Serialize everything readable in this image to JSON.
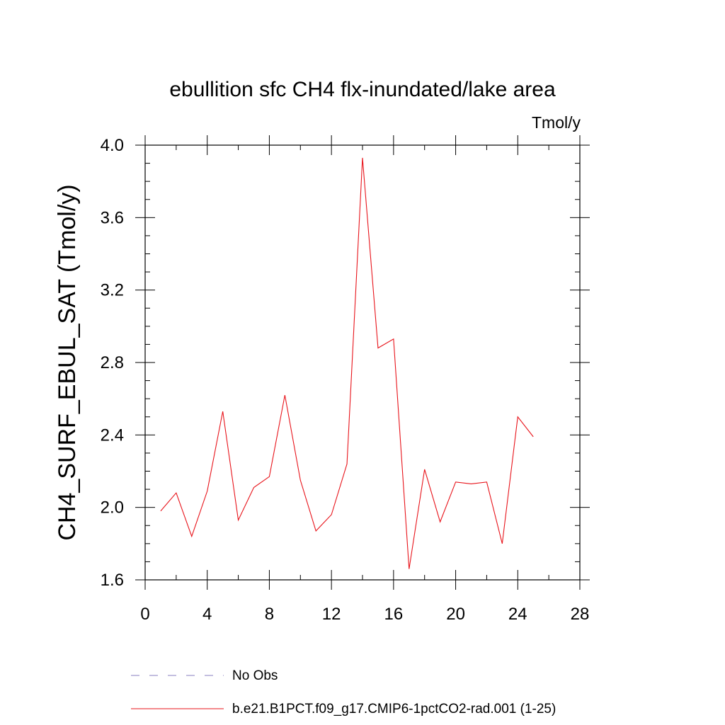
{
  "chart_data": {
    "type": "line",
    "title": "ebullition sfc CH4 flx-inundated/lake area",
    "units": "Tmol/y",
    "ylabel": "CH4_SURF_EBUL_SAT  (Tmol/y)",
    "xlabel": "",
    "xlim": [
      0,
      28
    ],
    "ylim": [
      1.6,
      4.0
    ],
    "xticks": [
      0,
      4,
      8,
      12,
      16,
      20,
      24,
      28
    ],
    "yticks": [
      1.6,
      2.0,
      2.4,
      2.8,
      3.2,
      3.6,
      4.0
    ],
    "xtick_labels": [
      "0",
      "4",
      "8",
      "12",
      "16",
      "20",
      "24",
      "28"
    ],
    "ytick_labels": [
      "1.6",
      "2.0",
      "2.4",
      "2.8",
      "3.2",
      "3.6",
      "4.0"
    ],
    "legend_placement": "bottom",
    "series": [
      {
        "name": "No Obs",
        "color": "#8a7fc0",
        "style": "dashed",
        "x": [],
        "values": []
      },
      {
        "name": "b.e21.B1PCT.f09_g17.CMIP6-1pctCO2-rad.001 (1-25)",
        "color": "#e8141b",
        "style": "solid",
        "x": [
          1,
          2,
          3,
          4,
          5,
          6,
          7,
          8,
          9,
          10,
          11,
          12,
          13,
          14,
          15,
          16,
          17,
          18,
          19,
          20,
          21,
          22,
          23,
          24,
          25
        ],
        "values": [
          1.98,
          2.08,
          1.84,
          2.09,
          2.53,
          1.93,
          2.11,
          2.17,
          2.62,
          2.15,
          1.87,
          1.96,
          2.24,
          3.93,
          2.88,
          2.93,
          1.66,
          2.21,
          1.92,
          2.14,
          2.13,
          2.14,
          1.8,
          2.5,
          2.39
        ]
      }
    ]
  }
}
